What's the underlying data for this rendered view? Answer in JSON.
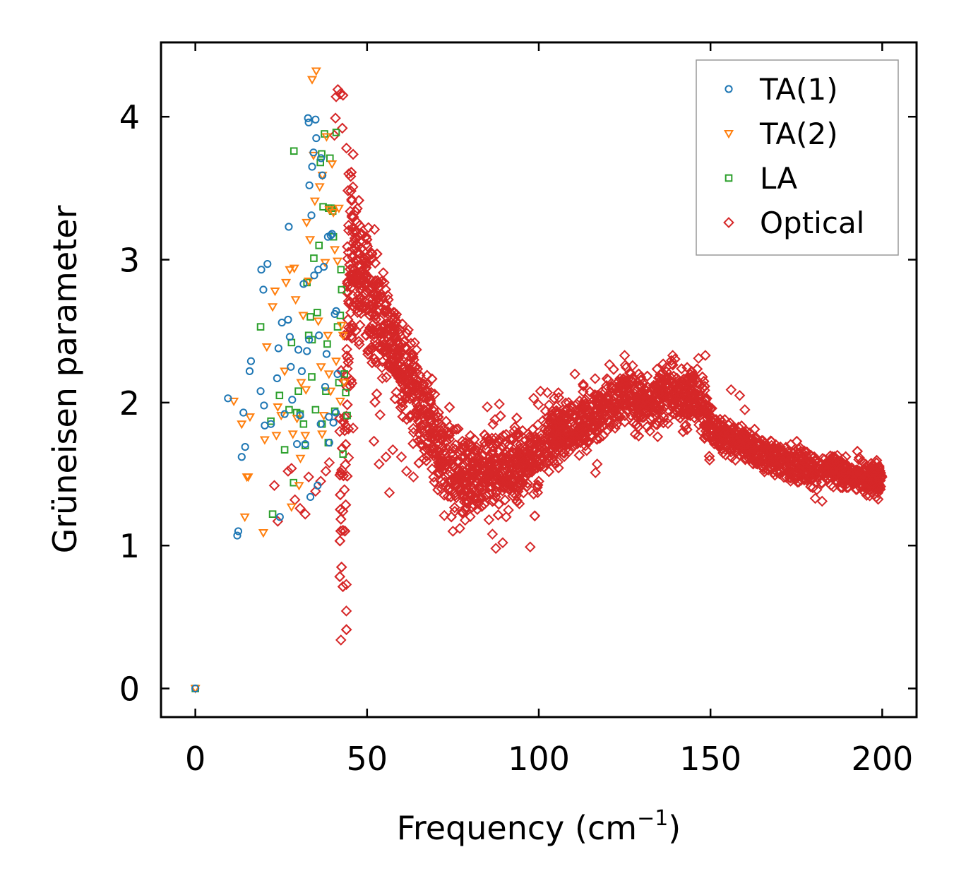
{
  "chart_data": {
    "type": "scatter",
    "xlabel": "Frequency (cm",
    "xlabel_sup": "−1",
    "xlabel_end": ")",
    "ylabel": "Grüneisen parameter",
    "xlim": [
      -10,
      210
    ],
    "ylim": [
      -0.2,
      4.52
    ],
    "xticks": [
      0,
      50,
      100,
      150,
      200
    ],
    "yticks": [
      0,
      1,
      2,
      3,
      4
    ],
    "legend_position": "top-right",
    "series": [
      {
        "name": "TA(1)",
        "marker": "circle",
        "color": "#1f77b4",
        "points": [
          [
            0,
            0
          ],
          [
            9.5,
            2.03
          ],
          [
            12.2,
            1.07
          ],
          [
            12.5,
            1.1
          ],
          [
            13.5,
            1.62
          ],
          [
            14,
            1.93
          ],
          [
            14.5,
            1.69
          ],
          [
            15.8,
            2.22
          ],
          [
            16.2,
            2.29
          ],
          [
            19,
            2.08
          ],
          [
            19.2,
            2.93
          ],
          [
            19.8,
            2.79
          ],
          [
            20,
            1.98
          ],
          [
            20.2,
            1.84
          ],
          [
            21,
            2.97
          ],
          [
            22,
            1.85
          ],
          [
            23.8,
            2.17
          ],
          [
            24.2,
            2.38
          ],
          [
            24.6,
            1.2
          ],
          [
            25.2,
            2.56
          ],
          [
            26,
            1.92
          ],
          [
            27,
            2.58
          ],
          [
            27.2,
            3.23
          ],
          [
            27.5,
            2.46
          ],
          [
            27.8,
            2.25
          ],
          [
            28.2,
            2.02
          ],
          [
            29.6,
            1.71
          ],
          [
            30,
            2.37
          ],
          [
            30.5,
            1.91
          ],
          [
            31,
            2.22
          ],
          [
            31.5,
            2.83
          ],
          [
            32,
            1.71
          ],
          [
            32.5,
            2.36
          ],
          [
            32.8,
            3.99
          ],
          [
            33,
            3.96
          ],
          [
            33.2,
            3.52
          ],
          [
            33.5,
            1.34
          ],
          [
            33.8,
            3.31
          ],
          [
            34,
            3.65
          ],
          [
            34.4,
            3.75
          ],
          [
            34.6,
            2.89
          ],
          [
            35,
            3.98
          ],
          [
            35.2,
            3.85
          ],
          [
            35.6,
            1.42
          ],
          [
            35.8,
            2.93
          ],
          [
            36,
            2.47
          ],
          [
            36.6,
            3.71
          ],
          [
            37,
            3.59
          ],
          [
            37.4,
            2.95
          ],
          [
            37.8,
            2.11
          ],
          [
            38.2,
            2.34
          ],
          [
            38.6,
            3.16
          ],
          [
            39,
            1.72
          ],
          [
            39.4,
            3.17
          ],
          [
            39.8,
            3.18
          ],
          [
            40.2,
            1.86
          ],
          [
            40.6,
            2.62
          ],
          [
            41,
            2.64
          ],
          [
            41.4,
            2.2
          ],
          [
            36.5,
            1.85
          ],
          [
            33.1,
            2.44
          ],
          [
            38.9,
            1.9
          ],
          [
            40.9,
            1.93
          ]
        ]
      },
      {
        "name": "TA(2)",
        "marker": "triangle",
        "color": "#ff7f0e",
        "points": [
          [
            0,
            0
          ],
          [
            11.2,
            2.01
          ],
          [
            13.5,
            1.85
          ],
          [
            14.4,
            1.2
          ],
          [
            15,
            1.48
          ],
          [
            15.4,
            1.48
          ],
          [
            15.9,
            1.9
          ],
          [
            19.8,
            1.09
          ],
          [
            20.2,
            1.74
          ],
          [
            20.8,
            2.39
          ],
          [
            22.5,
            2.67
          ],
          [
            23.2,
            2.78
          ],
          [
            23.6,
            1.77
          ],
          [
            24,
            1.97
          ],
          [
            25,
            1.91
          ],
          [
            26,
            2.22
          ],
          [
            26.4,
            2.84
          ],
          [
            27.5,
            2.93
          ],
          [
            28,
            1.27
          ],
          [
            28.4,
            1.78
          ],
          [
            28.8,
            2.94
          ],
          [
            29.2,
            2.72
          ],
          [
            29.6,
            1.89
          ],
          [
            30.2,
            1.42
          ],
          [
            30.8,
            2.14
          ],
          [
            31.4,
            2.61
          ],
          [
            32,
            1.77
          ],
          [
            32.4,
            3.26
          ],
          [
            33,
            2.85
          ],
          [
            33.4,
            3.14
          ],
          [
            34,
            4.26
          ],
          [
            34.4,
            3.73
          ],
          [
            34.8,
            3.41
          ],
          [
            35.2,
            4.32
          ],
          [
            35.8,
            2.57
          ],
          [
            36.2,
            3.51
          ],
          [
            36.6,
            2.25
          ],
          [
            37,
            3.59
          ],
          [
            37.4,
            1.91
          ],
          [
            37.8,
            2.98
          ],
          [
            38.2,
            3.86
          ],
          [
            38.6,
            2.47
          ],
          [
            39,
            3.35
          ],
          [
            39.4,
            2.08
          ],
          [
            39.8,
            3.67
          ],
          [
            40.2,
            3.33
          ],
          [
            40.6,
            3.07
          ],
          [
            41,
            2.29
          ],
          [
            41.4,
            2.99
          ],
          [
            41.8,
            3.36
          ],
          [
            42.2,
            2.01
          ],
          [
            42.6,
            2.54
          ],
          [
            43,
            2.47
          ],
          [
            43.4,
            2.14
          ],
          [
            32.2,
            2.09
          ],
          [
            30.6,
            1.61
          ],
          [
            36.9,
            1.78
          ],
          [
            38.9,
            2.2
          ]
        ]
      },
      {
        "name": "LA",
        "marker": "square",
        "color": "#2ca02c",
        "points": [
          [
            0,
            0
          ],
          [
            19,
            2.53
          ],
          [
            22.5,
            1.22
          ],
          [
            22,
            1.87
          ],
          [
            24.5,
            2.05
          ],
          [
            26,
            1.67
          ],
          [
            27.3,
            1.95
          ],
          [
            28,
            2.42
          ],
          [
            28.6,
            1.44
          ],
          [
            28.7,
            3.76
          ],
          [
            29.5,
            1.93
          ],
          [
            30,
            2.08
          ],
          [
            30.5,
            1.92
          ],
          [
            31.5,
            1.85
          ],
          [
            32,
            1.7
          ],
          [
            32.5,
            2.84
          ],
          [
            33,
            2.47
          ],
          [
            33.5,
            2.6
          ],
          [
            34,
            2.44
          ],
          [
            34.5,
            3.01
          ],
          [
            35,
            1.95
          ],
          [
            35.5,
            2.63
          ],
          [
            36,
            3.1
          ],
          [
            36.4,
            3.68
          ],
          [
            36.8,
            3.74
          ],
          [
            37.2,
            3.37
          ],
          [
            37.6,
            3.88
          ],
          [
            38,
            2.08
          ],
          [
            38.4,
            2.41
          ],
          [
            38.8,
            3.36
          ],
          [
            39.2,
            3.71
          ],
          [
            39.6,
            3.36
          ],
          [
            40,
            3.34
          ],
          [
            40.2,
            3.16
          ],
          [
            40.6,
            1.94
          ],
          [
            41,
            3.89
          ],
          [
            41.4,
            2.53
          ],
          [
            41.8,
            2.14
          ],
          [
            42.2,
            2.61
          ],
          [
            42.6,
            2.79
          ],
          [
            43,
            1.64
          ],
          [
            43.4,
            2.2
          ],
          [
            43.8,
            2.07
          ],
          [
            44.2,
            1.91
          ],
          [
            38.7,
            1.72
          ],
          [
            36.9,
            1.85
          ],
          [
            42.4,
            2.93
          ],
          [
            33.9,
            2.18
          ]
        ]
      },
      {
        "name": "Optical",
        "marker": "diamond",
        "color": "#d62728",
        "generated": true,
        "outliers": [
          [
            23,
            1.42
          ],
          [
            24,
            1.17
          ],
          [
            27,
            1.52
          ],
          [
            28,
            1.54
          ],
          [
            29,
            1.32
          ],
          [
            30.5,
            1.26
          ],
          [
            32,
            1.22
          ],
          [
            33,
            1.48
          ],
          [
            35,
            1.38
          ],
          [
            36.5,
            1.45
          ],
          [
            38,
            1.52
          ],
          [
            39,
            1.58
          ],
          [
            41.5,
            4.19
          ],
          [
            42.2,
            4.16
          ],
          [
            41,
            4.14
          ],
          [
            43,
            4.15
          ],
          [
            40.8,
            3.99
          ],
          [
            44,
            3.78
          ],
          [
            40.5,
            3.87
          ],
          [
            42.8,
            3.92
          ],
          [
            55,
            2.84
          ],
          [
            56,
            2.75
          ],
          [
            52,
            1.73
          ],
          [
            53.5,
            1.57
          ],
          [
            55.5,
            1.62
          ],
          [
            57.5,
            1.67
          ],
          [
            60,
            1.62
          ],
          [
            61.5,
            1.52
          ],
          [
            63.5,
            1.48
          ],
          [
            56.5,
            1.37
          ],
          [
            71.5,
            1.45
          ],
          [
            72.5,
            1.21
          ],
          [
            75,
            1.1
          ],
          [
            77,
            1.12
          ],
          [
            79,
            1.31
          ],
          [
            85.5,
            1.18
          ],
          [
            86.5,
            1.08
          ],
          [
            87.5,
            0.98
          ],
          [
            89.5,
            1.02
          ],
          [
            90.5,
            1.2
          ],
          [
            97.5,
            0.99
          ],
          [
            85,
            1.97
          ],
          [
            88.5,
            1.99
          ],
          [
            98.5,
            2.03
          ],
          [
            100.5,
            2.08
          ],
          [
            102.5,
            2.07
          ],
          [
            104.5,
            2.03
          ],
          [
            110.5,
            2.2
          ],
          [
            116.5,
            1.51
          ],
          [
            117,
            1.57
          ],
          [
            156,
            2.09
          ],
          [
            158.5,
            2.05
          ],
          [
            160,
            1.95
          ],
          [
            139,
            2.33
          ],
          [
            146.5,
            2.31
          ],
          [
            148.5,
            2.33
          ],
          [
            125,
            2.33
          ],
          [
            180.5,
            1.33
          ],
          [
            182.5,
            1.31
          ],
          [
            199.5,
            1.47
          ]
        ],
        "trend": [
          [
            44,
            2.3
          ],
          [
            45,
            2.95
          ],
          [
            47,
            3.0
          ],
          [
            49,
            2.85
          ],
          [
            52,
            2.6
          ],
          [
            56,
            2.45
          ],
          [
            60,
            2.25
          ],
          [
            64,
            2.05
          ],
          [
            68,
            1.85
          ],
          [
            72,
            1.65
          ],
          [
            76,
            1.5
          ],
          [
            78,
            1.47
          ],
          [
            82,
            1.5
          ],
          [
            86,
            1.57
          ],
          [
            90,
            1.55
          ],
          [
            94,
            1.55
          ],
          [
            98,
            1.63
          ],
          [
            102,
            1.74
          ],
          [
            106,
            1.8
          ],
          [
            110,
            1.83
          ],
          [
            114,
            1.85
          ],
          [
            118,
            1.95
          ],
          [
            122,
            2.02
          ],
          [
            126,
            2.05
          ],
          [
            130,
            2.03
          ],
          [
            134,
            2.05
          ],
          [
            138,
            2.07
          ],
          [
            142,
            2.05
          ],
          [
            146,
            2.05
          ],
          [
            150,
            1.85
          ],
          [
            154,
            1.77
          ],
          [
            160,
            1.72
          ],
          [
            166,
            1.64
          ],
          [
            172,
            1.58
          ],
          [
            178,
            1.55
          ],
          [
            184,
            1.53
          ],
          [
            190,
            1.5
          ],
          [
            196,
            1.47
          ],
          [
            200,
            1.45
          ]
        ]
      }
    ]
  }
}
